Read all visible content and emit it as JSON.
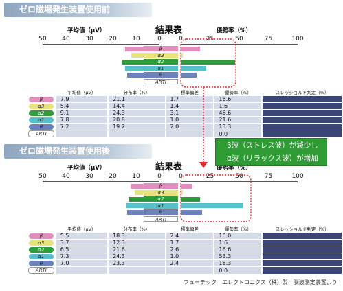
{
  "credit": "フューテック　エレクトロニクス（株）製　脳波測定装置より",
  "annotation": {
    "line1": "β波（ストレス波）が減少し",
    "line2": "α波（リラックス波）が増加"
  },
  "wave_colors": {
    "β": "#e28fbd",
    "α3": "#e8e27c",
    "α2": "#2f9b3a",
    "α1": "#54c0c9",
    "θ": "#6c82bf",
    "ARTI": "#ffffff"
  },
  "sections": [
    {
      "title": "ゼロ磁場発生装置使用前",
      "chart_title": "結果表",
      "left_axis_label": "平均値（μV）",
      "right_axis_label": "優勢率（%）",
      "left_ticks": [
        "50",
        "40",
        "30",
        "20",
        "10",
        "0"
      ],
      "right_ticks": [
        "0",
        "25",
        "50",
        "75",
        "100"
      ],
      "table_headers": [
        "",
        "平均値（μV）",
        "分布率（%）",
        "標準偏差",
        "優勢率（%）",
        "スレッショルド判定（%）"
      ],
      "rows": [
        {
          "wave": "β",
          "avg": "7.9",
          "dist": "21.1",
          "sd": "1.7",
          "dom": "16.6"
        },
        {
          "wave": "α3",
          "avg": "5.4",
          "dist": "14.4",
          "sd": "1.4",
          "dom": "1.6"
        },
        {
          "wave": "α2",
          "avg": "9.1",
          "dist": "24.3",
          "sd": "3.1",
          "dom": "46.6"
        },
        {
          "wave": "α1",
          "avg": "7.8",
          "dist": "20.8",
          "sd": "1.0",
          "dom": "21.6"
        },
        {
          "wave": "θ",
          "avg": "7.2",
          "dist": "19.2",
          "sd": "2.0",
          "dom": "13.3"
        },
        {
          "wave": "ARTI",
          "avg": "",
          "dist": "",
          "sd": "",
          "dom": "0.0"
        }
      ]
    },
    {
      "title": "ゼロ磁場発生装置使用後",
      "chart_title": "結果表",
      "left_axis_label": "平均値（μV）",
      "right_axis_label": "優勢率（%）",
      "left_ticks": [
        "50",
        "40",
        "30",
        "20",
        "10",
        "0"
      ],
      "right_ticks": [
        "0",
        "25",
        "50",
        "75",
        "100"
      ],
      "table_headers": [
        "",
        "平均値（μV）",
        "分布率（%）",
        "標準偏差",
        "優勢率（%）",
        "スレッショルド判定（%）"
      ],
      "rows": [
        {
          "wave": "β",
          "avg": "5.5",
          "dist": "18.3",
          "sd": "2.4",
          "dom": "10.0"
        },
        {
          "wave": "α3",
          "avg": "3.7",
          "dist": "12.3",
          "sd": "1.7",
          "dom": "1.6"
        },
        {
          "wave": "α2",
          "avg": "6.5",
          "dist": "21.6",
          "sd": "2.6",
          "dom": "16.6"
        },
        {
          "wave": "α1",
          "avg": "7.3",
          "dist": "24.3",
          "sd": "1.0",
          "dom": "53.3"
        },
        {
          "wave": "θ",
          "avg": "7.0",
          "dist": "23.3",
          "sd": "2.4",
          "dom": "18.3"
        },
        {
          "wave": "ARTI",
          "avg": "",
          "dist": "",
          "sd": "",
          "dom": "0.0"
        }
      ]
    }
  ],
  "chart_data": [
    {
      "type": "bar",
      "title": "結果表",
      "categories": [
        "β",
        "α3",
        "α2",
        "α1",
        "θ",
        "ARTI"
      ],
      "series": [
        {
          "name": "平均値（μV）",
          "values": [
            7.9,
            5.4,
            9.1,
            7.8,
            7.2,
            0
          ],
          "xlim": [
            50,
            0
          ]
        },
        {
          "name": "優勢率（%）",
          "values": [
            16.6,
            1.6,
            46.6,
            21.6,
            13.3,
            0.0
          ],
          "xlim": [
            0,
            100
          ]
        }
      ]
    },
    {
      "type": "bar",
      "title": "結果表",
      "categories": [
        "β",
        "α3",
        "α2",
        "α1",
        "θ",
        "ARTI"
      ],
      "series": [
        {
          "name": "平均値（μV）",
          "values": [
            5.5,
            3.7,
            6.5,
            7.3,
            7.0,
            0
          ],
          "xlim": [
            50,
            0
          ]
        },
        {
          "name": "優勢率（%）",
          "values": [
            10.0,
            1.6,
            16.6,
            53.3,
            18.3,
            0.0
          ],
          "xlim": [
            0,
            100
          ]
        }
      ]
    }
  ]
}
